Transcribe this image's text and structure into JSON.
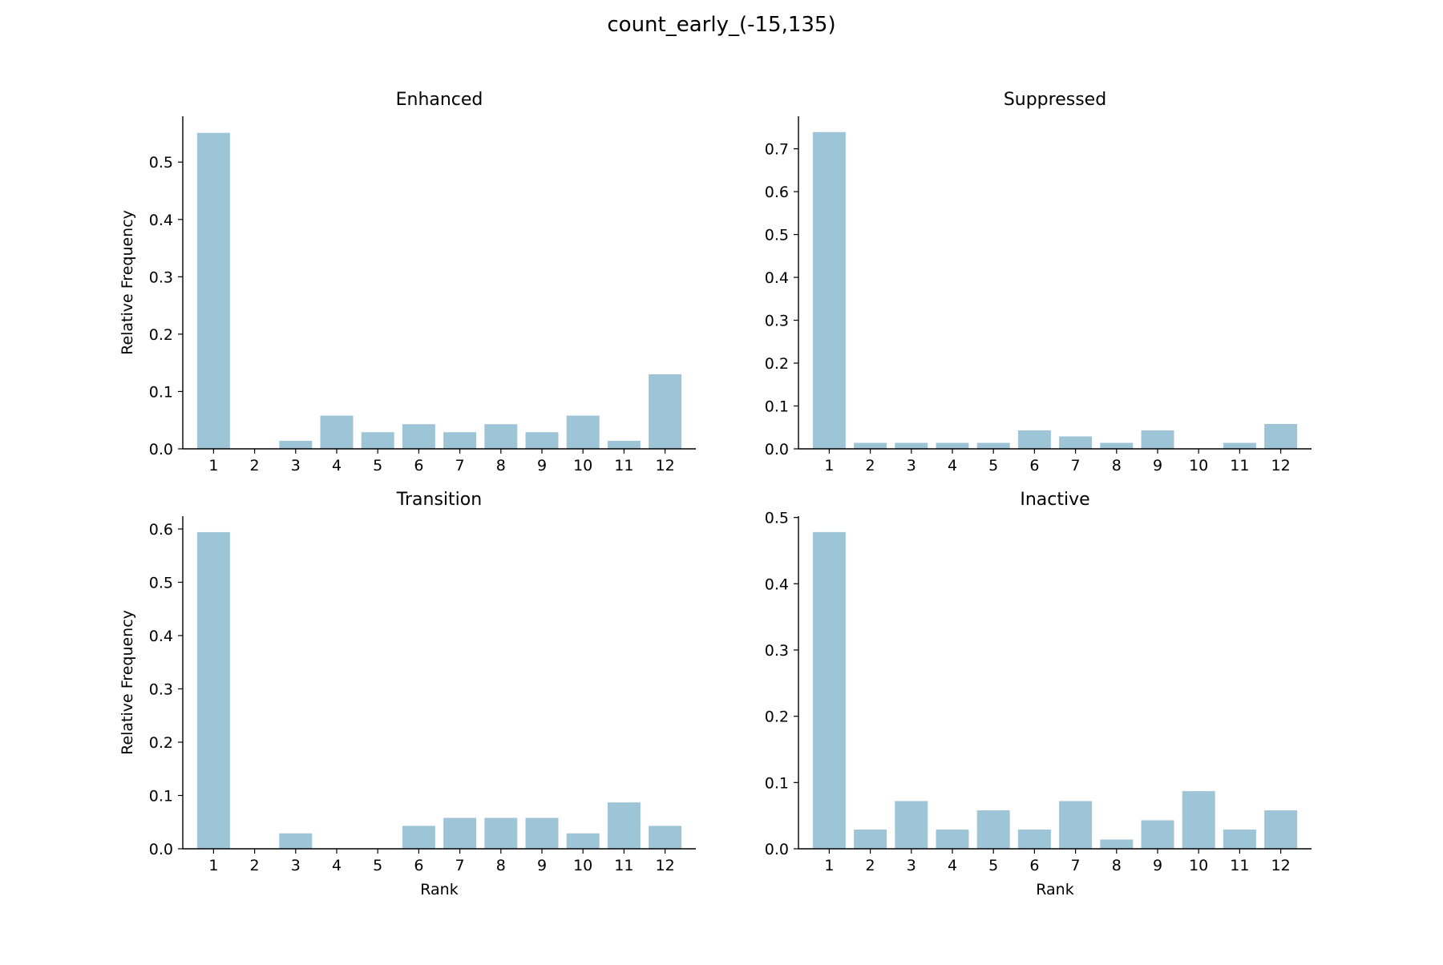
{
  "figure": {
    "title": "count_early_(-15,135)"
  },
  "style": {
    "bar_color": "#9ec4d7",
    "axis_color": "#000000"
  },
  "chart_data": [
    {
      "type": "bar",
      "title": "Enhanced",
      "categories": [
        "1",
        "2",
        "3",
        "4",
        "5",
        "6",
        "7",
        "8",
        "9",
        "10",
        "11",
        "12"
      ],
      "values": [
        0.551,
        0.0,
        0.014,
        0.058,
        0.029,
        0.043,
        0.029,
        0.043,
        0.029,
        0.058,
        0.014,
        0.13
      ],
      "xlabel": "",
      "ylabel": "Relative Frequency",
      "ylim": [
        0,
        0.58
      ],
      "yticks": [
        "0.0",
        "0.1",
        "0.2",
        "0.3",
        "0.4",
        "0.5"
      ],
      "grid": false
    },
    {
      "type": "bar",
      "title": "Suppressed",
      "categories": [
        "1",
        "2",
        "3",
        "4",
        "5",
        "6",
        "7",
        "8",
        "9",
        "10",
        "11",
        "12"
      ],
      "values": [
        0.739,
        0.014,
        0.014,
        0.014,
        0.014,
        0.043,
        0.029,
        0.014,
        0.043,
        0.0,
        0.014,
        0.058
      ],
      "xlabel": "",
      "ylabel": "",
      "ylim": [
        0,
        0.776
      ],
      "yticks": [
        "0.0",
        "0.1",
        "0.2",
        "0.3",
        "0.4",
        "0.5",
        "0.6",
        "0.7"
      ],
      "grid": false
    },
    {
      "type": "bar",
      "title": "Transition",
      "categories": [
        "1",
        "2",
        "3",
        "4",
        "5",
        "6",
        "7",
        "8",
        "9",
        "10",
        "11",
        "12"
      ],
      "values": [
        0.594,
        0.0,
        0.029,
        0.0,
        0.0,
        0.043,
        0.058,
        0.058,
        0.058,
        0.029,
        0.087,
        0.043
      ],
      "xlabel": "Rank",
      "ylabel": "Relative Frequency",
      "ylim": [
        0,
        0.624
      ],
      "yticks": [
        "0.0",
        "0.1",
        "0.2",
        "0.3",
        "0.4",
        "0.5",
        "0.6"
      ],
      "grid": false
    },
    {
      "type": "bar",
      "title": "Inactive",
      "categories": [
        "1",
        "2",
        "3",
        "4",
        "5",
        "6",
        "7",
        "8",
        "9",
        "10",
        "11",
        "12"
      ],
      "values": [
        0.478,
        0.029,
        0.072,
        0.029,
        0.058,
        0.029,
        0.072,
        0.014,
        0.043,
        0.087,
        0.029,
        0.058
      ],
      "xlabel": "Rank",
      "ylabel": "",
      "ylim": [
        0,
        0.502
      ],
      "yticks": [
        "0.0",
        "0.1",
        "0.2",
        "0.3",
        "0.4",
        "0.5"
      ],
      "grid": false
    }
  ]
}
